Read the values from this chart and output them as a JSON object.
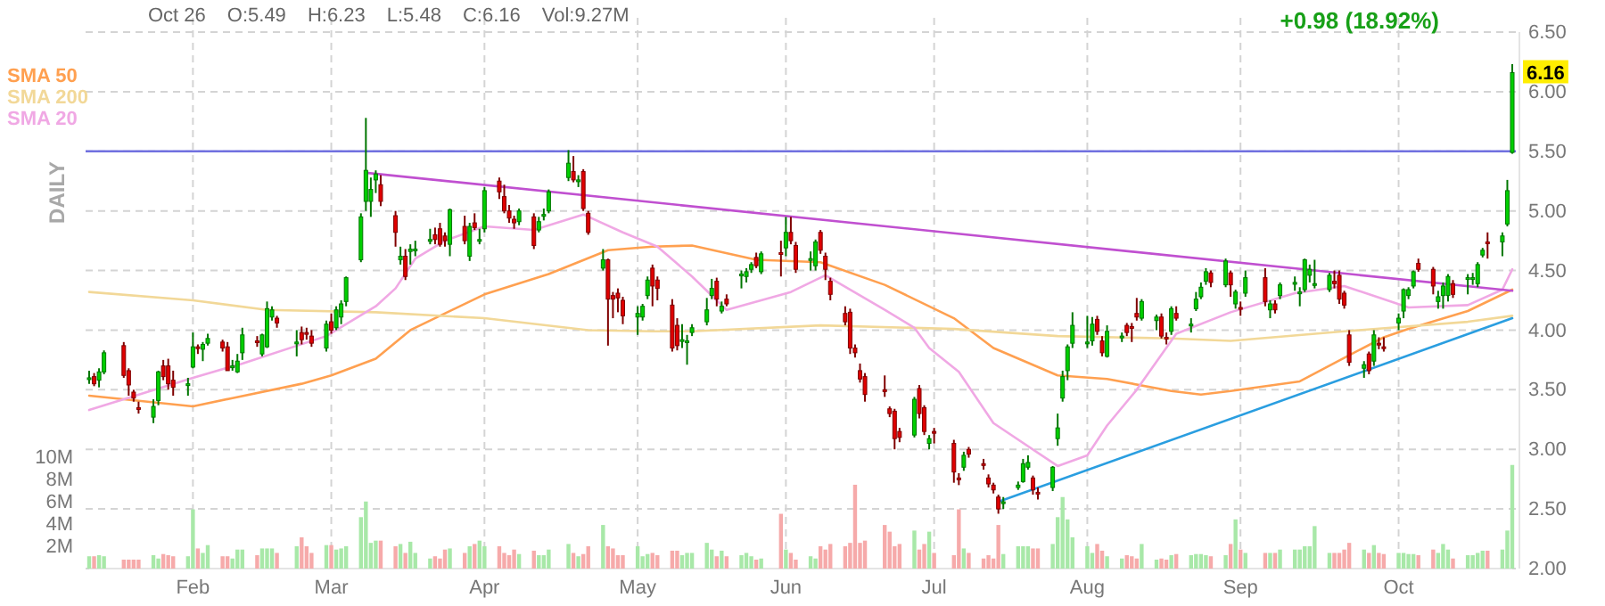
{
  "chart_data": {
    "type": "candlestick",
    "ylabel": "DAILY",
    "annotations": [
      "Oct 26",
      "O:5.49",
      "H:6.23",
      "L:5.48",
      "C:6.16",
      "Vol:9.27M",
      "+0.98 (18.92%)",
      "6.16"
    ],
    "x": [
      "--01-11",
      "--01-12",
      "--01-13",
      "--01-14",
      "--01-18",
      "--01-19",
      "--01-20",
      "--01-21",
      "--01-24",
      "--01-25",
      "--01-26",
      "--01-27",
      "--01-28",
      "--01-31",
      "--02-01",
      "--02-02",
      "--02-03",
      "--02-04",
      "--02-07",
      "--02-08",
      "--02-09",
      "--02-10",
      "--02-11",
      "--02-14",
      "--02-15",
      "--02-16",
      "--02-17",
      "--02-18",
      "--02-22",
      "--02-23",
      "--02-24",
      "--02-25",
      "--02-28",
      "--03-01",
      "--03-02",
      "--03-03",
      "--03-04",
      "--03-07",
      "--03-08",
      "--03-09",
      "--03-10",
      "--03-11",
      "--03-14",
      "--03-15",
      "--03-16",
      "--03-17",
      "--03-18",
      "--03-21",
      "--03-22",
      "--03-23",
      "--03-24",
      "--03-25",
      "--03-28",
      "--03-29",
      "--03-30",
      "--03-31",
      "--04-01",
      "--04-04",
      "--04-05",
      "--04-06",
      "--04-07",
      "--04-08",
      "--04-11",
      "--04-12",
      "--04-13",
      "--04-14",
      "--04-18",
      "--04-19",
      "--04-20",
      "--04-21",
      "--04-22",
      "--04-25",
      "--04-26",
      "--04-27",
      "--04-28",
      "--04-29",
      "--05-02",
      "--05-03",
      "--05-04",
      "--05-05",
      "--05-06",
      "--05-09",
      "--05-10",
      "--05-11",
      "--05-12",
      "--05-13",
      "--05-16",
      "--05-17",
      "--05-18",
      "--05-19",
      "--05-20",
      "--05-23",
      "--05-24",
      "--05-25",
      "--05-26",
      "--05-27",
      "--05-31",
      "--06-01",
      "--06-02",
      "--06-03",
      "--06-06",
      "--06-07",
      "--06-08",
      "--06-09",
      "--06-10",
      "--06-13",
      "--06-14",
      "--06-15",
      "--06-16",
      "--06-17",
      "--06-21",
      "--06-22",
      "--06-23",
      "--06-24",
      "--06-27",
      "--06-28",
      "--06-29",
      "--06-30",
      "--07-01",
      "--07-05",
      "--07-06",
      "--07-07",
      "--07-08",
      "--07-11",
      "--07-12",
      "--07-13",
      "--07-14",
      "--07-15",
      "--07-18",
      "--07-19",
      "--07-20",
      "--07-21",
      "--07-22",
      "--07-25",
      "--07-26",
      "--07-27",
      "--07-28",
      "--07-29",
      "--08-01",
      "--08-02",
      "--08-03",
      "--08-04",
      "--08-05",
      "--08-08",
      "--08-09",
      "--08-10",
      "--08-11",
      "--08-12",
      "--08-15",
      "--08-16",
      "--08-17",
      "--08-18",
      "--08-19",
      "--08-22",
      "--08-23",
      "--08-24",
      "--08-25",
      "--08-26",
      "--08-29",
      "--08-30",
      "--08-31",
      "--09-01",
      "--09-02",
      "--09-06",
      "--09-07",
      "--09-08",
      "--09-09",
      "--09-12",
      "--09-13",
      "--09-14",
      "--09-15",
      "--09-16",
      "--09-19",
      "--09-20",
      "--09-21",
      "--09-22",
      "--09-23",
      "--09-26",
      "--09-27",
      "--09-28",
      "--09-29",
      "--09-30",
      "--10-03",
      "--10-04",
      "--10-05",
      "--10-06",
      "--10-07",
      "--10-10",
      "--10-11",
      "--10-12",
      "--10-13",
      "--10-14",
      "--10-17",
      "--10-18",
      "--10-19",
      "--10-20",
      "--10-21",
      "--10-24",
      "--10-25",
      "--10-26"
    ],
    "ohlc": [
      [
        3.6,
        3.66,
        3.55,
        3.6
      ],
      [
        3.61,
        3.64,
        3.53,
        3.55
      ],
      [
        3.58,
        3.68,
        3.52,
        3.65
      ],
      [
        3.65,
        3.83,
        3.63,
        3.81
      ],
      [
        3.87,
        3.9,
        3.6,
        3.62
      ],
      [
        3.66,
        3.68,
        3.45,
        3.54
      ],
      [
        3.48,
        3.5,
        3.4,
        3.43
      ],
      [
        3.35,
        3.4,
        3.3,
        3.35
      ],
      [
        3.27,
        3.42,
        3.22,
        3.36
      ],
      [
        3.41,
        3.66,
        3.37,
        3.65
      ],
      [
        3.7,
        3.75,
        3.58,
        3.61
      ],
      [
        3.7,
        3.76,
        3.5,
        3.55
      ],
      [
        3.58,
        3.66,
        3.45,
        3.52
      ],
      [
        3.55,
        3.6,
        3.45,
        3.55
      ],
      [
        3.69,
        3.98,
        3.68,
        3.86
      ],
      [
        3.86,
        3.88,
        3.8,
        3.86
      ],
      [
        3.84,
        3.9,
        3.74,
        3.88
      ],
      [
        3.89,
        3.97,
        3.87,
        3.93
      ],
      [
        3.9,
        3.92,
        3.82,
        3.85
      ],
      [
        3.86,
        3.9,
        3.66,
        3.66
      ],
      [
        3.7,
        3.75,
        3.66,
        3.7
      ],
      [
        3.65,
        3.8,
        3.64,
        3.74
      ],
      [
        3.81,
        4.02,
        3.75,
        3.96
      ],
      [
        3.91,
        3.95,
        3.86,
        3.91
      ],
      [
        3.8,
        3.97,
        3.78,
        3.96
      ],
      [
        3.86,
        4.24,
        3.85,
        4.18
      ],
      [
        4.11,
        4.2,
        4.08,
        4.17
      ],
      [
        4.1,
        4.12,
        4.02,
        4.06
      ],
      [
        3.9,
        4.0,
        3.78,
        3.9
      ],
      [
        3.98,
        4.03,
        3.88,
        3.92
      ],
      [
        3.98,
        4.02,
        3.92,
        3.98
      ],
      [
        3.95,
        4.0,
        3.86,
        3.89
      ],
      [
        3.85,
        4.08,
        3.82,
        4.05
      ],
      [
        4.07,
        4.14,
        3.97,
        4.0
      ],
      [
        4.02,
        4.2,
        4.0,
        4.17
      ],
      [
        4.11,
        4.25,
        4.05,
        4.22
      ],
      [
        4.24,
        4.45,
        4.2,
        4.44
      ],
      [
        4.59,
        4.98,
        4.57,
        4.95
      ],
      [
        5.08,
        5.78,
        5.0,
        5.34
      ],
      [
        5.08,
        5.28,
        4.95,
        5.18
      ],
      [
        5.26,
        5.34,
        5.15,
        5.31
      ],
      [
        5.22,
        5.3,
        5.04,
        5.08
      ],
      [
        4.96,
        5.0,
        4.7,
        4.82
      ],
      [
        4.59,
        4.7,
        4.55,
        4.62
      ],
      [
        4.62,
        4.68,
        4.42,
        4.45
      ],
      [
        4.66,
        4.72,
        4.55,
        4.68
      ],
      [
        4.68,
        4.75,
        4.62,
        4.68
      ],
      [
        4.76,
        4.85,
        4.72,
        4.76
      ],
      [
        4.8,
        4.86,
        4.72,
        4.76
      ],
      [
        4.85,
        4.9,
        4.7,
        4.72
      ],
      [
        4.79,
        4.82,
        4.7,
        4.75
      ],
      [
        4.72,
        5.02,
        4.62,
        5.01
      ],
      [
        4.87,
        4.96,
        4.72,
        4.75
      ],
      [
        4.62,
        4.9,
        4.58,
        4.87
      ],
      [
        4.9,
        4.98,
        4.84,
        4.86
      ],
      [
        4.76,
        4.85,
        4.72,
        4.76
      ],
      [
        4.85,
        5.2,
        4.82,
        5.17
      ],
      [
        5.25,
        5.28,
        5.1,
        5.16
      ],
      [
        5.12,
        5.22,
        4.98,
        5.0
      ],
      [
        5.0,
        5.05,
        4.9,
        4.94
      ],
      [
        4.93,
        4.96,
        4.85,
        4.9
      ],
      [
        4.91,
        5.02,
        4.88,
        5.0
      ],
      [
        4.95,
        4.98,
        4.68,
        4.71
      ],
      [
        4.84,
        4.95,
        4.82,
        4.91
      ],
      [
        4.97,
        5.02,
        4.92,
        4.97
      ],
      [
        5.0,
        5.18,
        4.98,
        5.16
      ],
      [
        5.28,
        5.51,
        5.25,
        5.4
      ],
      [
        5.33,
        5.46,
        5.24,
        5.26
      ],
      [
        5.26,
        5.3,
        5.2,
        5.26
      ],
      [
        5.33,
        5.35,
        5.0,
        5.02
      ],
      [
        4.98,
        5.0,
        4.8,
        4.82
      ],
      [
        4.52,
        4.68,
        4.5,
        4.59
      ],
      [
        4.59,
        4.6,
        3.87,
        4.26
      ],
      [
        4.29,
        4.32,
        4.1,
        4.26
      ],
      [
        4.31,
        4.35,
        4.15,
        4.27
      ],
      [
        4.25,
        4.28,
        4.05,
        4.12
      ],
      [
        4.11,
        4.2,
        3.96,
        4.14
      ],
      [
        4.11,
        4.22,
        4.08,
        4.2
      ],
      [
        4.29,
        4.45,
        4.26,
        4.42
      ],
      [
        4.52,
        4.55,
        4.2,
        4.37
      ],
      [
        4.42,
        4.45,
        4.25,
        4.35
      ],
      [
        4.21,
        4.26,
        3.82,
        3.85
      ],
      [
        4.04,
        4.1,
        3.83,
        3.87
      ],
      [
        3.92,
        4.05,
        3.85,
        3.92
      ],
      [
        3.91,
        3.96,
        3.71,
        3.91
      ],
      [
        3.98,
        4.05,
        3.95,
        4.02
      ],
      [
        4.07,
        4.27,
        4.04,
        4.17
      ],
      [
        4.29,
        4.43,
        4.26,
        4.35
      ],
      [
        4.41,
        4.44,
        4.2,
        4.26
      ],
      [
        4.16,
        4.24,
        4.14,
        4.2
      ],
      [
        4.26,
        4.3,
        4.2,
        4.22
      ],
      [
        4.47,
        4.5,
        4.35,
        4.47
      ],
      [
        4.45,
        4.52,
        4.4,
        4.49
      ],
      [
        4.51,
        4.57,
        4.48,
        4.55
      ],
      [
        4.61,
        4.65,
        4.52,
        4.54
      ],
      [
        4.49,
        4.66,
        4.47,
        4.64
      ],
      [
        4.65,
        4.75,
        4.45,
        4.65
      ],
      [
        4.69,
        4.95,
        4.62,
        4.82
      ],
      [
        4.82,
        4.95,
        4.72,
        4.75
      ],
      [
        4.71,
        4.74,
        4.48,
        4.51
      ],
      [
        4.6,
        4.66,
        4.5,
        4.6
      ],
      [
        4.54,
        4.76,
        4.5,
        4.74
      ],
      [
        4.82,
        4.84,
        4.64,
        4.67
      ],
      [
        4.62,
        4.65,
        4.42,
        4.51
      ],
      [
        4.41,
        4.44,
        4.25,
        4.3
      ],
      [
        4.14,
        4.2,
        4.04,
        4.07
      ],
      [
        4.15,
        4.18,
        3.8,
        3.85
      ],
      [
        3.85,
        3.88,
        3.77,
        3.81
      ],
      [
        3.66,
        3.72,
        3.56,
        3.59
      ],
      [
        3.61,
        3.64,
        3.4,
        3.46
      ],
      [
        3.5,
        3.62,
        3.44,
        3.5
      ],
      [
        3.34,
        3.36,
        3.27,
        3.3
      ],
      [
        3.32,
        3.34,
        3.0,
        3.09
      ],
      [
        3.15,
        3.18,
        3.06,
        3.1
      ],
      [
        3.12,
        3.44,
        3.1,
        3.42
      ],
      [
        3.51,
        3.54,
        3.26,
        3.3
      ],
      [
        3.35,
        3.37,
        3.12,
        3.15
      ],
      [
        3.05,
        3.12,
        3.0,
        3.09
      ],
      [
        3.15,
        3.18,
        3.05,
        3.15
      ],
      [
        3.05,
        3.08,
        2.72,
        2.81
      ],
      [
        2.76,
        2.8,
        2.7,
        2.76
      ],
      [
        2.85,
        2.98,
        2.82,
        2.95
      ],
      [
        3.0,
        3.02,
        2.93,
        2.96
      ],
      [
        2.88,
        2.92,
        2.83,
        2.88
      ],
      [
        2.76,
        2.79,
        2.68,
        2.71
      ],
      [
        2.7,
        2.72,
        2.63,
        2.66
      ],
      [
        2.6,
        2.62,
        2.46,
        2.5
      ],
      [
        2.56,
        2.6,
        2.5,
        2.56
      ],
      [
        2.68,
        2.73,
        2.66,
        2.7
      ],
      [
        2.73,
        2.92,
        2.72,
        2.88
      ],
      [
        2.85,
        2.95,
        2.83,
        2.89
      ],
      [
        2.76,
        2.78,
        2.62,
        2.66
      ],
      [
        2.64,
        2.68,
        2.58,
        2.64
      ],
      [
        2.68,
        2.86,
        2.65,
        2.85
      ],
      [
        3.09,
        3.3,
        3.03,
        3.18
      ],
      [
        3.43,
        3.66,
        3.4,
        3.61
      ],
      [
        3.66,
        3.88,
        3.58,
        3.86
      ],
      [
        3.89,
        4.15,
        3.85,
        4.04
      ],
      [
        3.9,
        4.12,
        3.85,
        3.9
      ],
      [
        3.91,
        4.11,
        3.87,
        4.05
      ],
      [
        4.09,
        4.12,
        3.96,
        3.99
      ],
      [
        3.91,
        3.95,
        3.78,
        3.81
      ],
      [
        3.78,
        4.04,
        3.77,
        3.99
      ],
      [
        3.95,
        3.98,
        3.9,
        3.95
      ],
      [
        4.04,
        4.06,
        3.95,
        3.98
      ],
      [
        4.03,
        4.06,
        3.9,
        4.03
      ],
      [
        4.14,
        4.27,
        4.08,
        4.11
      ],
      [
        4.1,
        4.26,
        4.08,
        4.24
      ],
      [
        4.08,
        4.13,
        4.0,
        4.11
      ],
      [
        4.11,
        4.14,
        3.93,
        3.95
      ],
      [
        3.94,
        3.98,
        3.88,
        3.94
      ],
      [
        3.99,
        4.2,
        3.96,
        4.18
      ],
      [
        4.14,
        4.2,
        4.08,
        4.1
      ],
      [
        4.05,
        4.1,
        3.98,
        4.05
      ],
      [
        4.18,
        4.32,
        4.16,
        4.26
      ],
      [
        4.28,
        4.4,
        4.26,
        4.36
      ],
      [
        4.41,
        4.52,
        4.38,
        4.49
      ],
      [
        4.48,
        4.5,
        4.36,
        4.4
      ],
      [
        4.38,
        4.6,
        4.36,
        4.58
      ],
      [
        4.48,
        4.5,
        4.28,
        4.38
      ],
      [
        4.22,
        4.34,
        4.18,
        4.32
      ],
      [
        4.19,
        4.24,
        4.12,
        4.19
      ],
      [
        4.31,
        4.5,
        4.28,
        4.44
      ],
      [
        4.44,
        4.52,
        4.2,
        4.24
      ],
      [
        4.17,
        4.25,
        4.1,
        4.22
      ],
      [
        4.22,
        4.25,
        4.14,
        4.17
      ],
      [
        4.29,
        4.4,
        4.26,
        4.38
      ],
      [
        4.4,
        4.45,
        4.33,
        4.4
      ],
      [
        4.32,
        4.36,
        4.2,
        4.32
      ],
      [
        4.34,
        4.6,
        4.32,
        4.59
      ],
      [
        4.46,
        4.55,
        4.4,
        4.51
      ],
      [
        4.39,
        4.59,
        4.35,
        4.39
      ],
      [
        4.34,
        4.48,
        4.32,
        4.46
      ],
      [
        4.41,
        4.5,
        4.35,
        4.39
      ],
      [
        4.46,
        4.5,
        4.22,
        4.26
      ],
      [
        4.31,
        4.33,
        4.18,
        4.21
      ],
      [
        3.96,
        4.0,
        3.7,
        3.73
      ],
      [
        3.68,
        3.74,
        3.6,
        3.71
      ],
      [
        3.8,
        3.82,
        3.63,
        3.66
      ],
      [
        3.74,
        4.0,
        3.7,
        3.96
      ],
      [
        3.89,
        3.94,
        3.84,
        3.89
      ],
      [
        3.86,
        3.94,
        3.82,
        3.86
      ],
      [
        4.06,
        4.14,
        4.0,
        4.1
      ],
      [
        4.16,
        4.35,
        4.1,
        4.34
      ],
      [
        4.29,
        4.36,
        4.26,
        4.34
      ],
      [
        4.37,
        4.5,
        4.35,
        4.49
      ],
      [
        4.56,
        4.6,
        4.49,
        4.51
      ],
      [
        4.51,
        4.53,
        4.3,
        4.37
      ],
      [
        4.24,
        4.33,
        4.18,
        4.28
      ],
      [
        4.29,
        4.4,
        4.18,
        4.37
      ],
      [
        4.29,
        4.47,
        4.24,
        4.45
      ],
      [
        4.39,
        4.42,
        4.27,
        4.3
      ],
      [
        4.44,
        4.47,
        4.3,
        4.44
      ],
      [
        4.44,
        4.48,
        4.38,
        4.44
      ],
      [
        4.39,
        4.57,
        4.36,
        4.55
      ],
      [
        4.63,
        4.69,
        4.61,
        4.67
      ],
      [
        4.74,
        4.82,
        4.6,
        4.74
      ],
      [
        4.74,
        4.82,
        4.62,
        4.79
      ],
      [
        4.89,
        5.26,
        4.87,
        5.17
      ],
      [
        5.49,
        6.23,
        5.48,
        6.16
      ]
    ],
    "colors": [
      "#00d000",
      "#e00000",
      "#00d000",
      "#00d000",
      "#e00000",
      "#e00000",
      "#e00000",
      "#e00000",
      "#00d000",
      "#00d000",
      "#e00000",
      "#e00000",
      "#e00000",
      "#00d000",
      "#00d000",
      "#e00000",
      "#00d000",
      "#00d000",
      "#e00000",
      "#e00000",
      "#00d000",
      "#00d000",
      "#00d000",
      "#e00000",
      "#00d000",
      "#00d000",
      "#00d000",
      "#e00000",
      "#00d000",
      "#e00000",
      "#e00000",
      "#e00000",
      "#00d000",
      "#e00000",
      "#00d000",
      "#00d000",
      "#00d000",
      "#00d000",
      "#00d000",
      "#00d000",
      "#00d000",
      "#e00000",
      "#e00000",
      "#00d000",
      "#e00000",
      "#00d000",
      "#00d000",
      "#00d000",
      "#e00000",
      "#e00000",
      "#e00000",
      "#00d000",
      "#e00000",
      "#00d000",
      "#e00000",
      "#00d000",
      "#00d000",
      "#e00000",
      "#e00000",
      "#e00000",
      "#e00000",
      "#00d000",
      "#e00000",
      "#00d000",
      "#00d000",
      "#00d000",
      "#00d000",
      "#e00000",
      "#00d000",
      "#e00000",
      "#e00000",
      "#00d000",
      "#e00000",
      "#e00000",
      "#e00000",
      "#e00000",
      "#00d000",
      "#00d000",
      "#00d000",
      "#e00000",
      "#e00000",
      "#e00000",
      "#e00000",
      "#00d000",
      "#00d000",
      "#00d000",
      "#00d000",
      "#00d000",
      "#e00000",
      "#00d000",
      "#e00000",
      "#00d000",
      "#00d000",
      "#00d000",
      "#e00000",
      "#00d000",
      "#e00000",
      "#00d000",
      "#e00000",
      "#e00000",
      "#00d000",
      "#00d000",
      "#e00000",
      "#e00000",
      "#e00000",
      "#e00000",
      "#e00000",
      "#e00000",
      "#e00000",
      "#e00000",
      "#e00000",
      "#e00000",
      "#e00000",
      "#e00000",
      "#00d000",
      "#e00000",
      "#e00000",
      "#00d000",
      "#e00000",
      "#e00000",
      "#e00000",
      "#00d000",
      "#e00000",
      "#e00000",
      "#e00000",
      "#e00000",
      "#e00000",
      "#00d000",
      "#00d000",
      "#00d000",
      "#00d000",
      "#e00000",
      "#e00000",
      "#00d000",
      "#00d000",
      "#00d000",
      "#00d000",
      "#00d000",
      "#00d000",
      "#00d000",
      "#e00000",
      "#e00000",
      "#00d000",
      "#00d000",
      "#e00000",
      "#e00000",
      "#e00000",
      "#00d000",
      "#00d000",
      "#e00000",
      "#e00000",
      "#00d000",
      "#e00000",
      "#00d000",
      "#00d000",
      "#00d000",
      "#00d000",
      "#e00000",
      "#00d000",
      "#e00000",
      "#00d000",
      "#e00000",
      "#00d000",
      "#e00000",
      "#00d000",
      "#e00000",
      "#00d000",
      "#00d000",
      "#00d000",
      "#00d000",
      "#00d000",
      "#00d000",
      "#00d000",
      "#e00000",
      "#e00000",
      "#e00000",
      "#e00000",
      "#00d000",
      "#e00000",
      "#00d000",
      "#e00000",
      "#e00000",
      "#00d000",
      "#00d000",
      "#00d000",
      "#00d000",
      "#e00000",
      "#e00000",
      "#00d000",
      "#00d000",
      "#00d000",
      "#e00000",
      "#00d000",
      "#00d000",
      "#00d000",
      "#00d000",
      "#e00000",
      "#00d000",
      "#00d000",
      "#00d000"
    ],
    "series": [
      {
        "type": "bar",
        "axis": "y3",
        "colors": [
          "#a8e8a8",
          "#f6aaaa",
          "#a8e8a8",
          "#a8e8a8",
          "#f6aaaa",
          "#f6aaaa",
          "#f6aaaa",
          "#f6aaaa",
          "#a8e8a8",
          "#a8e8a8",
          "#f6aaaa",
          "#f6aaaa",
          "#f6aaaa",
          "#a8e8a8",
          "#a8e8a8",
          "#f6aaaa",
          "#a8e8a8",
          "#a8e8a8",
          "#f6aaaa",
          "#f6aaaa",
          "#a8e8a8",
          "#a8e8a8",
          "#a8e8a8",
          "#f6aaaa",
          "#a8e8a8",
          "#a8e8a8",
          "#a8e8a8",
          "#f6aaaa",
          "#a8e8a8",
          "#f6aaaa",
          "#f6aaaa",
          "#f6aaaa",
          "#a8e8a8",
          "#f6aaaa",
          "#a8e8a8",
          "#a8e8a8",
          "#a8e8a8",
          "#a8e8a8",
          "#a8e8a8",
          "#a8e8a8",
          "#a8e8a8",
          "#f6aaaa",
          "#f6aaaa",
          "#a8e8a8",
          "#f6aaaa",
          "#a8e8a8",
          "#a8e8a8",
          "#a8e8a8",
          "#f6aaaa",
          "#f6aaaa",
          "#f6aaaa",
          "#a8e8a8",
          "#f6aaaa",
          "#a8e8a8",
          "#f6aaaa",
          "#a8e8a8",
          "#a8e8a8",
          "#f6aaaa",
          "#f6aaaa",
          "#f6aaaa",
          "#f6aaaa",
          "#a8e8a8",
          "#f6aaaa",
          "#a8e8a8",
          "#a8e8a8",
          "#a8e8a8",
          "#a8e8a8",
          "#f6aaaa",
          "#a8e8a8",
          "#f6aaaa",
          "#f6aaaa",
          "#a8e8a8",
          "#f6aaaa",
          "#f6aaaa",
          "#f6aaaa",
          "#f6aaaa",
          "#a8e8a8",
          "#a8e8a8",
          "#a8e8a8",
          "#f6aaaa",
          "#f6aaaa",
          "#f6aaaa",
          "#f6aaaa",
          "#a8e8a8",
          "#a8e8a8",
          "#a8e8a8",
          "#a8e8a8",
          "#a8e8a8",
          "#f6aaaa",
          "#a8e8a8",
          "#f6aaaa",
          "#a8e8a8",
          "#a8e8a8",
          "#a8e8a8",
          "#f6aaaa",
          "#a8e8a8",
          "#f6aaaa",
          "#a8e8a8",
          "#f6aaaa",
          "#f6aaaa",
          "#a8e8a8",
          "#a8e8a8",
          "#f6aaaa",
          "#f6aaaa",
          "#f6aaaa",
          "#f6aaaa",
          "#f6aaaa",
          "#f6aaaa",
          "#f6aaaa",
          "#f6aaaa",
          "#f6aaaa",
          "#f6aaaa",
          "#f6aaaa",
          "#f6aaaa",
          "#a8e8a8",
          "#f6aaaa",
          "#f6aaaa",
          "#a8e8a8",
          "#f6aaaa",
          "#f6aaaa",
          "#f6aaaa",
          "#a8e8a8",
          "#f6aaaa",
          "#f6aaaa",
          "#f6aaaa",
          "#f6aaaa",
          "#f6aaaa",
          "#a8e8a8",
          "#a8e8a8",
          "#a8e8a8",
          "#a8e8a8",
          "#f6aaaa",
          "#f6aaaa",
          "#a8e8a8",
          "#a8e8a8",
          "#a8e8a8",
          "#a8e8a8",
          "#a8e8a8",
          "#a8e8a8",
          "#a8e8a8",
          "#f6aaaa",
          "#f6aaaa",
          "#a8e8a8",
          "#a8e8a8",
          "#f6aaaa",
          "#f6aaaa",
          "#f6aaaa",
          "#a8e8a8",
          "#a8e8a8",
          "#f6aaaa",
          "#f6aaaa",
          "#a8e8a8",
          "#f6aaaa",
          "#a8e8a8",
          "#a8e8a8",
          "#a8e8a8",
          "#a8e8a8",
          "#f6aaaa",
          "#a8e8a8",
          "#f6aaaa",
          "#a8e8a8",
          "#f6aaaa",
          "#a8e8a8",
          "#f6aaaa",
          "#a8e8a8",
          "#f6aaaa",
          "#a8e8a8",
          "#a8e8a8",
          "#a8e8a8",
          "#a8e8a8",
          "#a8e8a8",
          "#a8e8a8",
          "#a8e8a8",
          "#f6aaaa",
          "#f6aaaa",
          "#f6aaaa",
          "#f6aaaa",
          "#a8e8a8",
          "#f6aaaa",
          "#a8e8a8",
          "#f6aaaa",
          "#f6aaaa",
          "#a8e8a8",
          "#a8e8a8",
          "#a8e8a8",
          "#a8e8a8",
          "#f6aaaa",
          "#f6aaaa",
          "#a8e8a8",
          "#a8e8a8",
          "#a8e8a8",
          "#f6aaaa",
          "#a8e8a8",
          "#a8e8a8",
          "#a8e8a8",
          "#a8e8a8",
          "#f6aaaa",
          "#a8e8a8",
          "#a8e8a8",
          "#a8e8a8"
        ],
        "values": [
          1.1,
          1.1,
          1.2,
          1.1,
          0.8,
          0.8,
          0.8,
          0.8,
          1.2,
          0.9,
          1.3,
          1.2,
          1.1,
          1.1,
          5.3,
          1.8,
          1.4,
          2.1,
          1.1,
          1.1,
          0.9,
          1.7,
          1.7,
          1.2,
          1.8,
          1.8,
          1.8,
          1.4,
          2.0,
          2.8,
          2.0,
          1.4,
          2.1,
          2.1,
          1.7,
          1.8,
          2.0,
          4.6,
          6.0,
          2.3,
          2.5,
          2.5,
          2.0,
          2.2,
          1.4,
          2.4,
          1.4,
          0.9,
          1.1,
          0.9,
          1.7,
          1.8,
          1.4,
          2.0,
          2.2,
          2.5,
          2.0,
          2.0,
          1.4,
          1.2,
          1.7,
          1.3,
          1.6,
          1.2,
          1.2,
          1.7,
          2.2,
          1.4,
          1.1,
          1.3,
          2.0,
          3.9,
          2.0,
          1.8,
          1.2,
          1.2,
          2.0,
          1.1,
          1.3,
          1.4,
          1.2,
          1.6,
          1.6,
          1.2,
          1.4,
          1.4,
          2.3,
          1.7,
          1.1,
          1.6,
          1.1,
          1.2,
          1.4,
          1.1,
          0.8,
          0.9,
          4.9,
          1.7,
          1.4,
          0.8,
          1.1,
          0.9,
          2.0,
          1.7,
          2.2,
          2.0,
          2.3,
          7.5,
          2.3,
          2.5,
          3.9,
          3.3,
          2.0,
          2.2,
          3.4,
          1.7,
          2.2,
          3.3,
          1.4,
          1.2,
          5.3,
          1.8,
          1.4,
          0.9,
          1.2,
          0.9,
          3.9,
          1.3,
          2.0,
          2.0,
          2.0,
          1.8,
          1.8,
          2.2,
          4.6,
          6.4,
          4.4,
          2.8,
          2.0,
          1.4,
          2.2,
          1.6,
          1.1,
          0.9,
          1.2,
          1.1,
          0.9,
          2.2,
          0.8,
          0.9,
          0.8,
          1.2,
          1.3,
          1.2,
          1.3,
          1.3,
          1.2,
          1.1,
          1.2,
          2.2,
          4.4,
          1.7,
          1.4,
          1.4,
          1.4,
          1.4,
          1.7,
          1.7,
          1.7,
          2.0,
          2.0,
          3.8,
          1.4,
          1.4,
          1.4,
          1.7,
          2.3,
          1.7,
          1.4,
          2.1,
          1.4,
          1.3,
          1.4,
          1.4,
          1.3,
          1.3,
          1.2,
          1.7,
          1.4,
          2.2,
          1.7,
          0.9,
          1.2,
          1.2,
          1.4,
          1.6,
          1.6,
          1.7,
          3.4,
          9.27
        ]
      },
      {
        "type": "line",
        "name": "SMA 50",
        "color": "#ffa050",
        "x": [
          "--01-11",
          "--02-01",
          "--02-09",
          "--02-23",
          "--03-01",
          "--03-10",
          "--03-17",
          "--04-01",
          "--04-14",
          "--04-26",
          "--05-05",
          "--05-13",
          "--05-26",
          "--06-08",
          "--06-21",
          "--07-05",
          "--07-13",
          "--07-26",
          "--08-05",
          "--08-18",
          "--08-24",
          "--08-30",
          "--09-13",
          "--09-23",
          "--09-30",
          "--10-05",
          "--10-17",
          "--10-26"
        ],
        "values": [
          3.45,
          3.36,
          3.43,
          3.55,
          3.62,
          3.76,
          4.0,
          4.3,
          4.47,
          4.67,
          4.7,
          4.71,
          4.59,
          4.57,
          4.38,
          4.1,
          3.85,
          3.62,
          3.59,
          3.49,
          3.46,
          3.49,
          3.57,
          3.79,
          3.94,
          4.01,
          4.16,
          4.34
        ]
      },
      {
        "type": "line",
        "name": "SMA 200",
        "color": "#f2d898",
        "x": [
          "--01-11",
          "--02-01",
          "--02-16",
          "--03-10",
          "--04-01",
          "--04-22",
          "--05-05",
          "--05-13",
          "--06-08",
          "--07-05",
          "--07-26",
          "--08-18",
          "--08-30",
          "--09-22",
          "--10-17",
          "--10-26"
        ],
        "values": [
          4.32,
          4.25,
          4.17,
          4.15,
          4.1,
          4.0,
          3.99,
          3.99,
          4.04,
          4.01,
          3.95,
          3.93,
          3.91,
          3.99,
          4.07,
          4.12
        ]
      },
      {
        "type": "line",
        "name": "SMA 20",
        "color": "#f0a8e4",
        "x": [
          "--01-11",
          "--02-01",
          "--02-11",
          "--02-28",
          "--03-10",
          "--03-14",
          "--03-18",
          "--03-24",
          "--04-01",
          "--04-11",
          "--04-21",
          "--04-29",
          "--05-06",
          "--05-13",
          "--05-20",
          "--06-02",
          "--06-09",
          "--06-21",
          "--06-27",
          "--06-30",
          "--07-06",
          "--07-13",
          "--07-26",
          "--08-01",
          "--08-05",
          "--08-11",
          "--08-19",
          "--08-30",
          "--09-12",
          "--09-22",
          "--10-05",
          "--10-17",
          "--10-24",
          "--10-26"
        ],
        "values": [
          3.33,
          3.6,
          3.72,
          3.95,
          4.2,
          4.35,
          4.6,
          4.75,
          4.87,
          4.84,
          4.97,
          4.82,
          4.7,
          4.45,
          4.17,
          4.32,
          4.46,
          4.17,
          4.02,
          3.85,
          3.65,
          3.22,
          2.86,
          2.95,
          3.2,
          3.5,
          3.97,
          4.15,
          4.31,
          4.37,
          4.19,
          4.21,
          4.34,
          4.51
        ]
      },
      {
        "type": "line",
        "color": "#c050d0",
        "x": [
          "--03-08",
          "--10-26"
        ],
        "values": [
          5.32,
          4.33
        ]
      },
      {
        "type": "line",
        "color": "#2a9ee0",
        "x": [
          "--07-14",
          "--10-26"
        ],
        "values": [
          2.56,
          4.1
        ]
      }
    ],
    "ref_lines": [
      {
        "axis": "y",
        "value": 5.5,
        "color": "#7070e0"
      }
    ],
    "xlim": [
      "--01-11",
      "--10-26"
    ],
    "xticks": [
      {
        "value": "--02-01",
        "label": "Feb"
      },
      {
        "value": "--03-01",
        "label": "Mar"
      },
      {
        "value": "--04-01",
        "label": "Apr"
      },
      {
        "value": "--05-02",
        "label": "May"
      },
      {
        "value": "--06-01",
        "label": "Jun"
      },
      {
        "value": "--07-01",
        "label": "Jul"
      },
      {
        "value": "--08-01",
        "label": "Aug"
      },
      {
        "value": "--09-01",
        "label": "Sep"
      },
      {
        "value": "--10-03",
        "label": "Oct"
      }
    ],
    "ylim": [
      2,
      6.5
    ],
    "yticks": [
      {
        "value": 2,
        "label": "2.00"
      },
      {
        "value": 2.5,
        "label": "2.50"
      },
      {
        "value": 3,
        "label": "3.00"
      },
      {
        "value": 3.5,
        "label": "3.50"
      },
      {
        "value": 4,
        "label": "4.00"
      },
      {
        "value": 4.5,
        "label": "4.50"
      },
      {
        "value": 5,
        "label": "5.00"
      },
      {
        "value": 5.5,
        "label": "5.50"
      },
      {
        "value": 6,
        "label": "6.00"
      },
      {
        "value": 6.5,
        "label": "6.50"
      }
    ],
    "y3lim": [
      0,
      48
    ],
    "y3ticks": [
      {
        "value": 2,
        "label": "2M"
      },
      {
        "value": 4,
        "label": "4M"
      },
      {
        "value": 6,
        "label": "6M"
      },
      {
        "value": 8,
        "label": "8M"
      },
      {
        "value": 10,
        "label": "10M"
      }
    ],
    "grid": true,
    "legend": "top left"
  }
}
